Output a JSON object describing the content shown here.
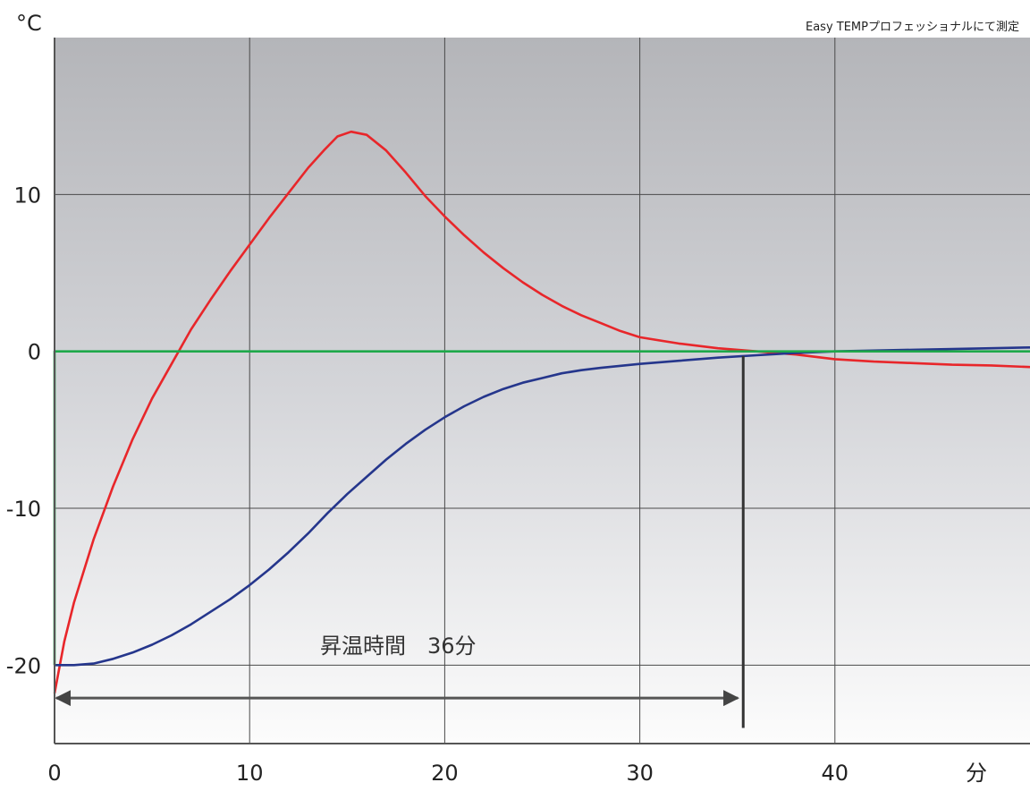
{
  "chart_data": {
    "type": "line",
    "y_unit": "°C",
    "x_unit": "分",
    "note": "Easy TEMPプロフェッショナルにて測定",
    "xlim": [
      0,
      50
    ],
    "ylim": [
      -25,
      20
    ],
    "x_ticks": [
      0,
      10,
      20,
      30,
      40
    ],
    "y_ticks": [
      10,
      0,
      -10,
      -20
    ],
    "x_tick_labels": [
      "0",
      "10",
      "20",
      "30",
      "40"
    ],
    "y_tick_labels": [
      "10",
      "0",
      "-10",
      "-20"
    ],
    "grid": true,
    "series": [
      {
        "color": "#e8262a",
        "points": [
          [
            0,
            -21.8
          ],
          [
            0.5,
            -18.5
          ],
          [
            1,
            -16
          ],
          [
            2,
            -12
          ],
          [
            3,
            -8.6
          ],
          [
            4,
            -5.6
          ],
          [
            5,
            -3
          ],
          [
            6,
            -0.8
          ],
          [
            7,
            1.4
          ],
          [
            8,
            3.3
          ],
          [
            9,
            5.1
          ],
          [
            10,
            6.8
          ],
          [
            11,
            8.5
          ],
          [
            12,
            10.1
          ],
          [
            13,
            11.7
          ],
          [
            13.8,
            12.8
          ],
          [
            14.5,
            13.7
          ],
          [
            15.2,
            14.0
          ],
          [
            16,
            13.8
          ],
          [
            17,
            12.8
          ],
          [
            18,
            11.4
          ],
          [
            19,
            9.9
          ],
          [
            20,
            8.6
          ],
          [
            21,
            7.4
          ],
          [
            22,
            6.3
          ],
          [
            23,
            5.3
          ],
          [
            24,
            4.4
          ],
          [
            25,
            3.6
          ],
          [
            26,
            2.9
          ],
          [
            27,
            2.3
          ],
          [
            28,
            1.8
          ],
          [
            29,
            1.3
          ],
          [
            30,
            0.9
          ],
          [
            32,
            0.5
          ],
          [
            34,
            0.2
          ],
          [
            36,
            0.0
          ],
          [
            38,
            -0.2
          ],
          [
            40,
            -0.5
          ],
          [
            42,
            -0.65
          ],
          [
            44,
            -0.75
          ],
          [
            46,
            -0.85
          ],
          [
            48,
            -0.9
          ],
          [
            50,
            -1.0
          ]
        ]
      },
      {
        "color": "#25368c",
        "points": [
          [
            0,
            -20
          ],
          [
            1,
            -20
          ],
          [
            2,
            -19.9
          ],
          [
            3,
            -19.6
          ],
          [
            4,
            -19.2
          ],
          [
            5,
            -18.7
          ],
          [
            6,
            -18.1
          ],
          [
            7,
            -17.4
          ],
          [
            8,
            -16.6
          ],
          [
            9,
            -15.8
          ],
          [
            10,
            -14.9
          ],
          [
            11,
            -13.9
          ],
          [
            12,
            -12.8
          ],
          [
            13,
            -11.6
          ],
          [
            14,
            -10.3
          ],
          [
            15,
            -9.1
          ],
          [
            16,
            -8
          ],
          [
            17,
            -6.9
          ],
          [
            18,
            -5.9
          ],
          [
            19,
            -5
          ],
          [
            20,
            -4.2
          ],
          [
            21,
            -3.5
          ],
          [
            22,
            -2.9
          ],
          [
            23,
            -2.4
          ],
          [
            24,
            -2
          ],
          [
            25,
            -1.7
          ],
          [
            26,
            -1.4
          ],
          [
            27,
            -1.2
          ],
          [
            28,
            -1.05
          ],
          [
            30,
            -0.8
          ],
          [
            32,
            -0.6
          ],
          [
            34,
            -0.4
          ],
          [
            36,
            -0.25
          ],
          [
            38,
            -0.1
          ],
          [
            40,
            0.0
          ],
          [
            44,
            0.1
          ],
          [
            48,
            0.2
          ],
          [
            50,
            0.25
          ]
        ]
      },
      {
        "color": "#1ea84a",
        "points": [
          [
            0,
            -20
          ],
          [
            0,
            0
          ],
          [
            50,
            0
          ]
        ]
      }
    ],
    "annotation": {
      "label": "昇温時間　36分",
      "x_start": 0,
      "x_end": 35.3,
      "y": -22.1,
      "marker_x": 35.3,
      "marker_y_top": -0.3,
      "marker_y_bottom": -24
    }
  }
}
